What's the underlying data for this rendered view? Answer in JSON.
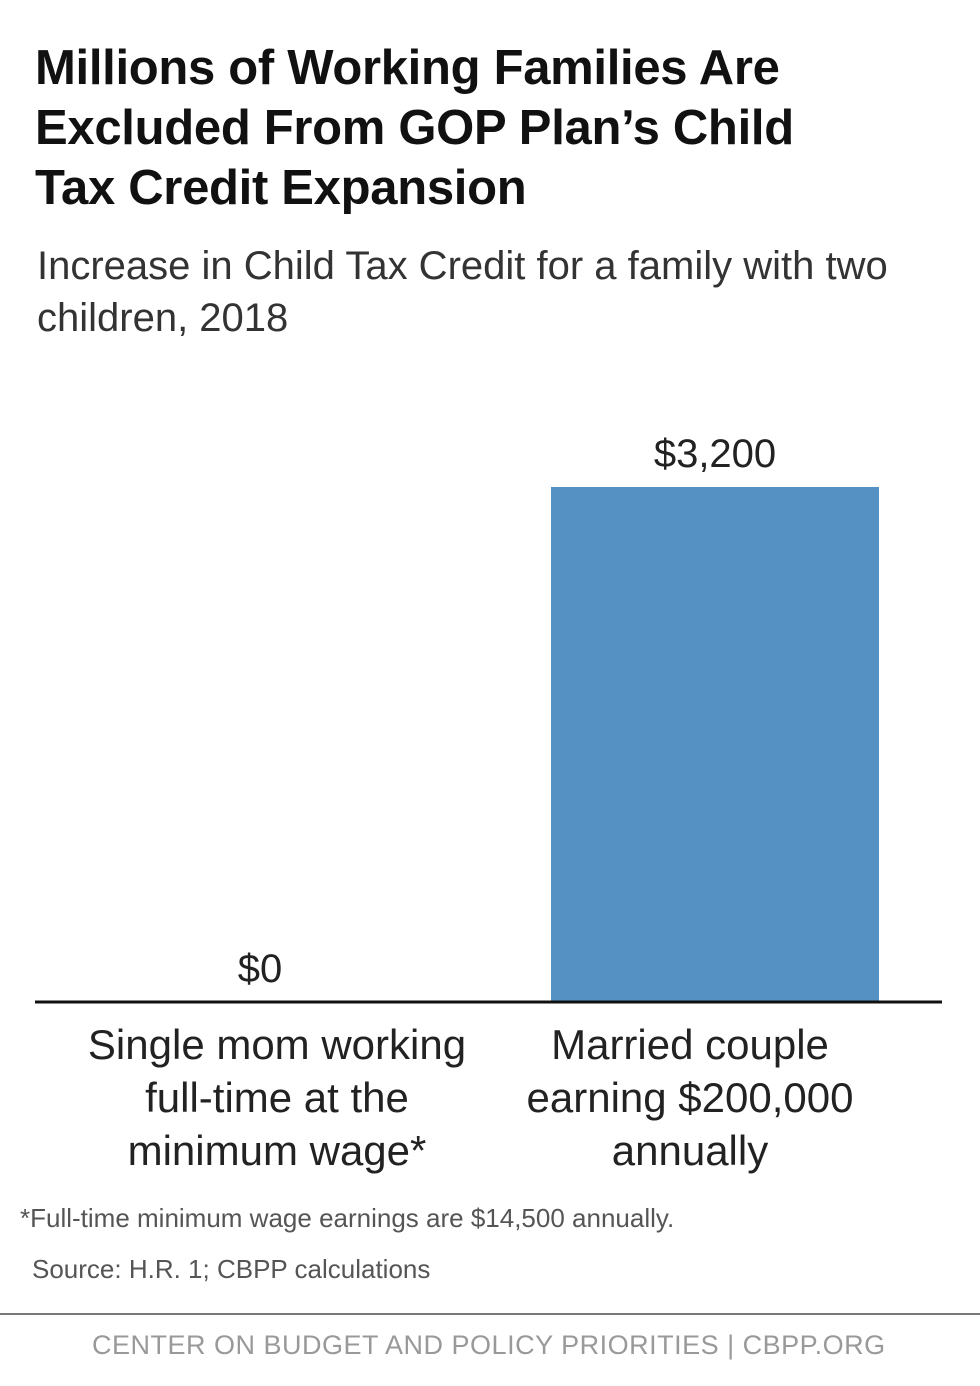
{
  "title": [
    "Millions of Working Families Are",
    "Excluded From GOP Plan’s Child",
    "Tax Credit Expansion"
  ],
  "subtitle": [
    "Increase in Child Tax Credit for a family with two",
    "children, 2018"
  ],
  "chart_data": {
    "type": "bar",
    "categories": [
      [
        "Single mom working",
        "full-time at the",
        "minimum wage*"
      ],
      [
        "Married couple",
        "earning $200,000",
        "annually"
      ]
    ],
    "values": [
      0,
      3200
    ],
    "data_labels": [
      "$0",
      "$3,200"
    ],
    "ylim": [
      0,
      3200
    ],
    "grid": false,
    "bar_color": "#5691c4"
  },
  "footnote": "*Full-time minimum wage earnings are $14,500 annually.",
  "source": "Source: H.R. 1; CBPP calculations",
  "footer": "CENTER ON BUDGET AND POLICY PRIORITIES | CBPP.ORG"
}
